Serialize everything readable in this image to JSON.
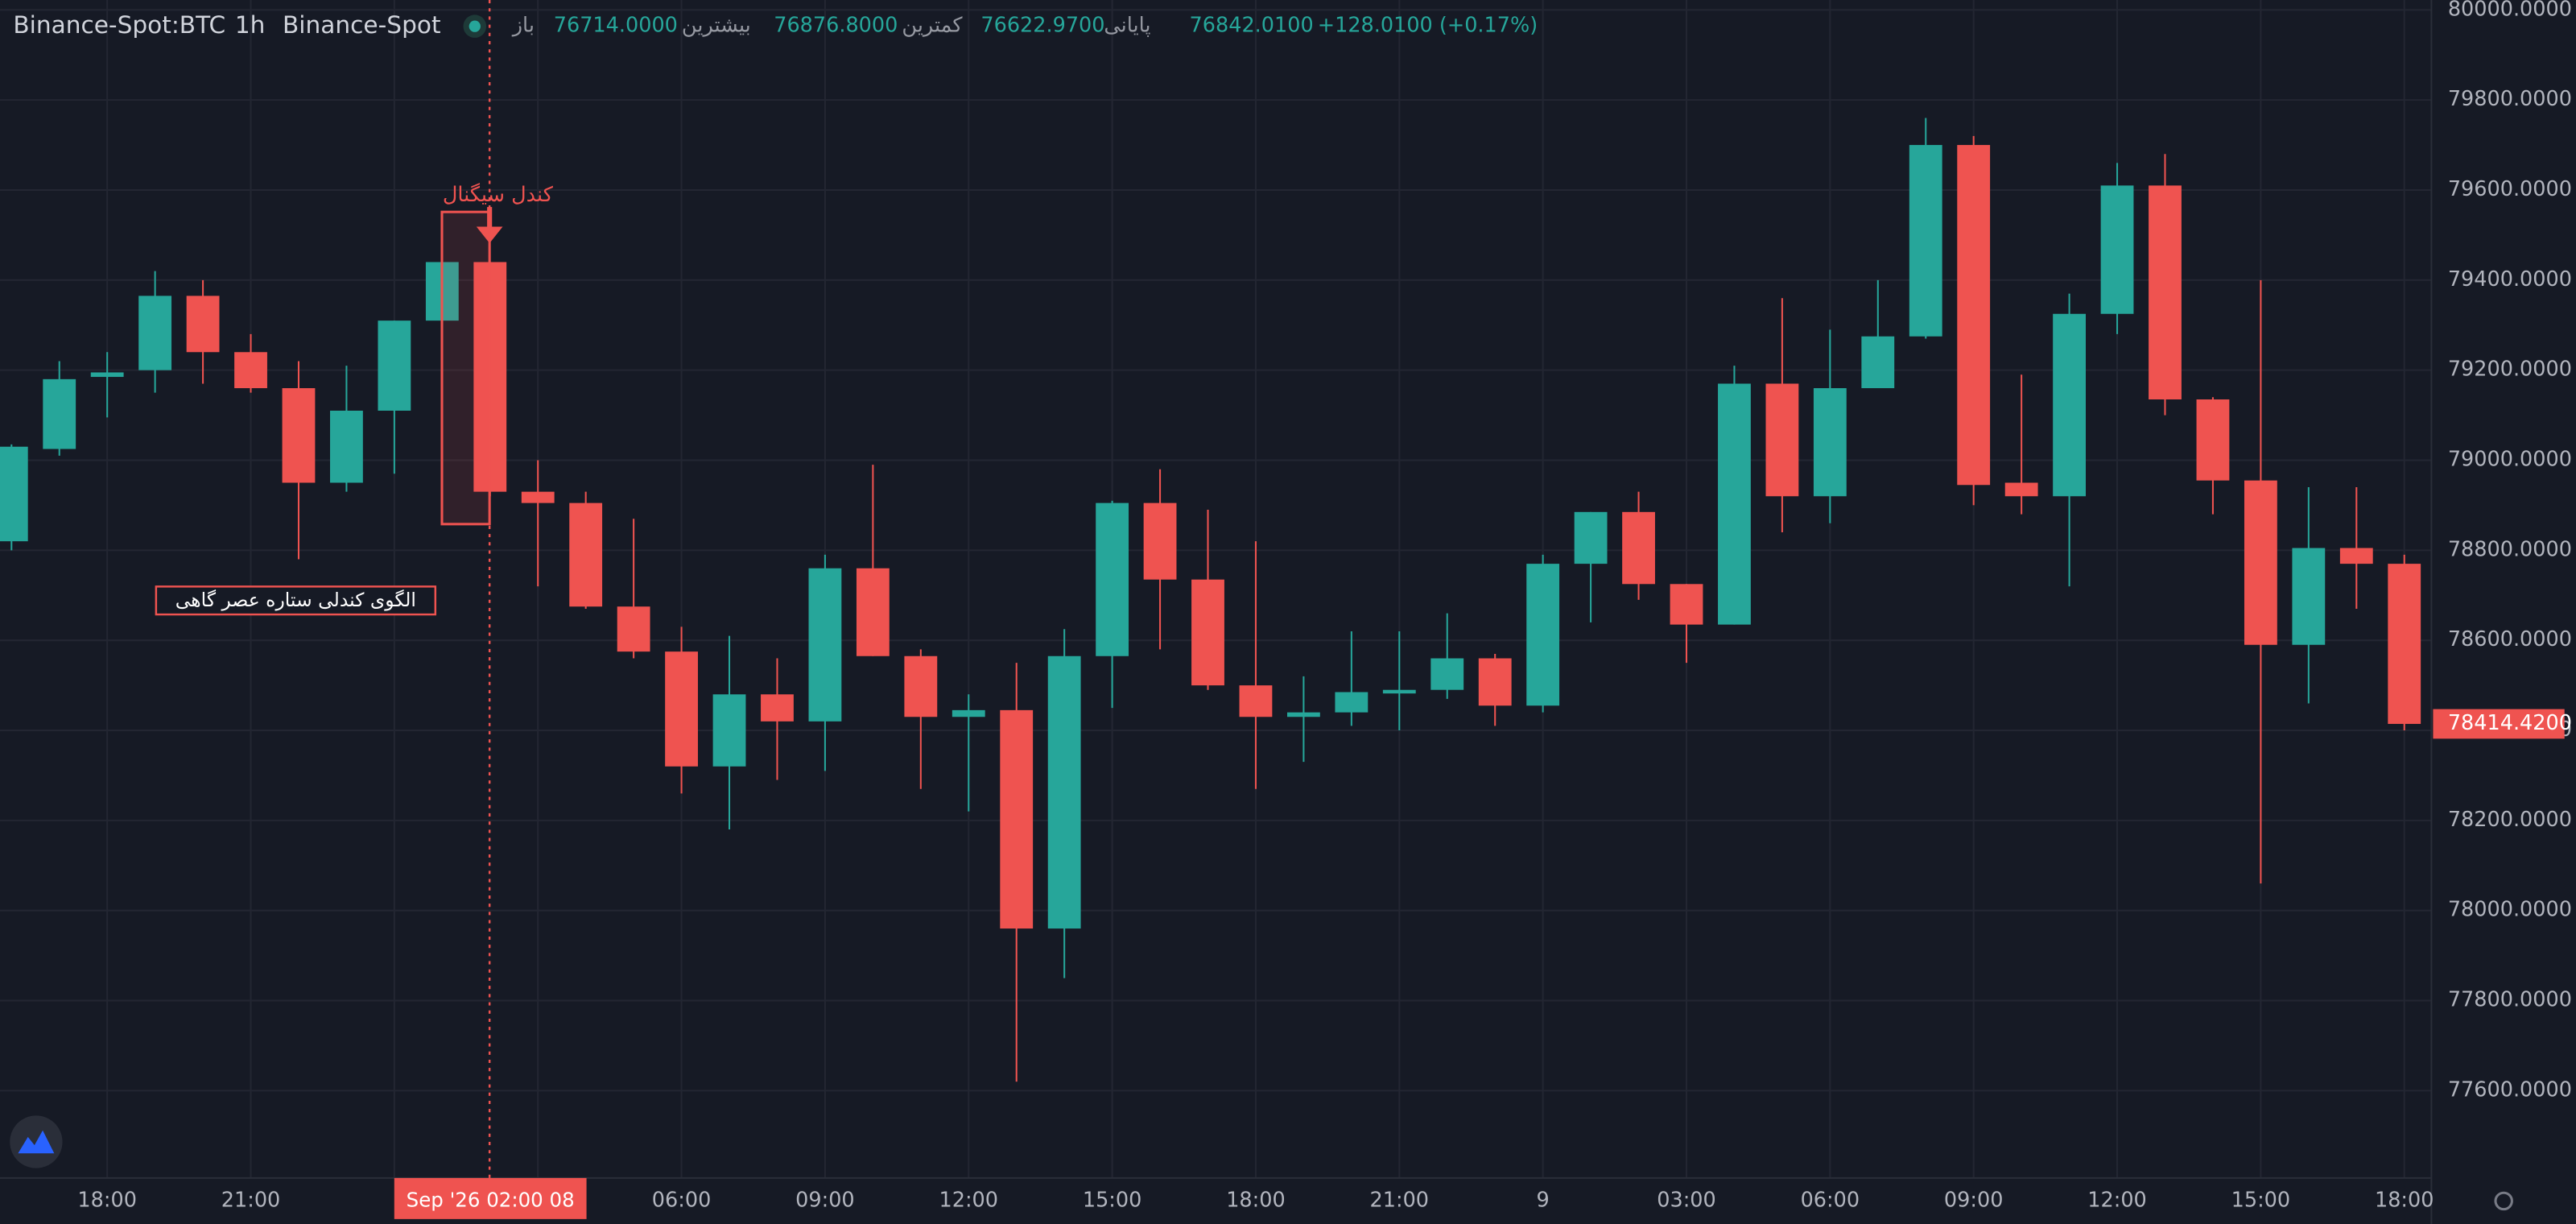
{
  "chart_data": {
    "type": "candlestick",
    "header": {
      "symbol": "Binance-Spot:BTC",
      "interval": "1h",
      "exchange": "Binance-Spot",
      "ohlc": [
        "باز",
        "76714.0000",
        "بیشترین",
        "76876.8000",
        "کمترین",
        "76622.9700",
        "پایانی",
        "76842.0100",
        "+128.0100 (+0.17%)"
      ]
    },
    "annotations": [
      "کندل سیگنال",
      "الگوی کندلی ستاره عصر گاهی"
    ],
    "crosshair_label": "Sep '26  02:00 08",
    "price_label": "78414.4200",
    "up_color": "#26a69a",
    "down_color": "#ef5350",
    "categories": [
      null,
      null,
      "18:00",
      null,
      null,
      "21:00",
      null,
      null,
      null,
      null,
      null,
      null,
      null,
      null,
      "06:00",
      null,
      null,
      "09:00",
      null,
      null,
      "12:00",
      null,
      null,
      "15:00",
      null,
      null,
      "18:00",
      null,
      null,
      "21:00",
      null,
      null,
      "9",
      null,
      null,
      "03:00",
      null,
      null,
      "06:00",
      null,
      null,
      "09:00",
      null,
      null,
      "12:00",
      null,
      null,
      "15:00",
      null,
      null,
      "18:00"
    ],
    "open": [
      78820,
      79025,
      79185,
      79200,
      79365,
      79240,
      79160,
      78950,
      79110,
      79310,
      79440,
      78930,
      78905,
      78675,
      78575,
      78320,
      78480,
      78420,
      78760,
      78565,
      78430,
      78445,
      77960,
      78565,
      78905,
      78735,
      78500,
      78430,
      78440,
      78482,
      78490,
      78560,
      78455,
      78770,
      78885,
      78725,
      78635,
      79170,
      78920,
      79160,
      79275,
      79700,
      78950,
      78920,
      79325,
      79610,
      79135,
      78955,
      78590,
      78805,
      78770
    ],
    "high": [
      79035,
      79220,
      79240,
      79420,
      79400,
      79280,
      79220,
      79210,
      79310,
      79440,
      79440,
      79000,
      78930,
      78870,
      78630,
      78610,
      78560,
      78790,
      78990,
      78580,
      78480,
      78550,
      78625,
      78910,
      78980,
      78890,
      78820,
      78520,
      78620,
      78620,
      78660,
      78570,
      78790,
      78885,
      78930,
      78725,
      79210,
      79360,
      79290,
      79400,
      79760,
      79720,
      79190,
      79370,
      79660,
      79680,
      79140,
      79400,
      78940,
      78940,
      78790
    ],
    "low": [
      78800,
      79010,
      79095,
      79150,
      79170,
      79150,
      78780,
      78930,
      78970,
      79310,
      78920,
      78720,
      78670,
      78560,
      78260,
      78180,
      78290,
      78310,
      78565,
      78270,
      78220,
      77620,
      77850,
      78450,
      78580,
      78490,
      78270,
      78330,
      78410,
      78400,
      78470,
      78410,
      78440,
      78640,
      78690,
      78550,
      78635,
      78840,
      78860,
      79160,
      79270,
      78900,
      78880,
      78720,
      79280,
      79100,
      78880,
      78060,
      78460,
      78670,
      78400
    ],
    "close": [
      79030,
      79180,
      79195,
      79365,
      79240,
      79160,
      78950,
      79110,
      79310,
      79440,
      78930,
      78905,
      78675,
      78575,
      78320,
      78480,
      78420,
      78760,
      78565,
      78430,
      78445,
      77960,
      78565,
      78905,
      78735,
      78500,
      78430,
      78440,
      78485,
      78490,
      78560,
      78455,
      78770,
      78885,
      78725,
      78635,
      79170,
      78920,
      79160,
      79275,
      79700,
      78945,
      78920,
      79325,
      79610,
      79135,
      78955,
      78590,
      78805,
      78770,
      78414.42
    ],
    "ylim": [
      77406,
      80022
    ],
    "yticks": [
      {
        "value": 80000,
        "label": "80000.0000"
      },
      {
        "value": 79800,
        "label": "79800.0000"
      },
      {
        "value": 79600,
        "label": "79600.0000"
      },
      {
        "value": 79400,
        "label": "79400.0000"
      },
      {
        "value": 79200,
        "label": "79200.0000"
      },
      {
        "value": 79000,
        "label": "79000.0000"
      },
      {
        "value": 78800,
        "label": "78800.0000"
      },
      {
        "value": 78600,
        "label": "78600.0000"
      },
      {
        "value": 78400,
        "label": "78400.0000"
      },
      {
        "value": 78200,
        "label": "78200.0000"
      },
      {
        "value": 78000,
        "label": "78000.0000"
      },
      {
        "value": 77800,
        "label": "77800.0000"
      },
      {
        "value": 77600,
        "label": "77600.0000"
      }
    ],
    "grid": true
  }
}
